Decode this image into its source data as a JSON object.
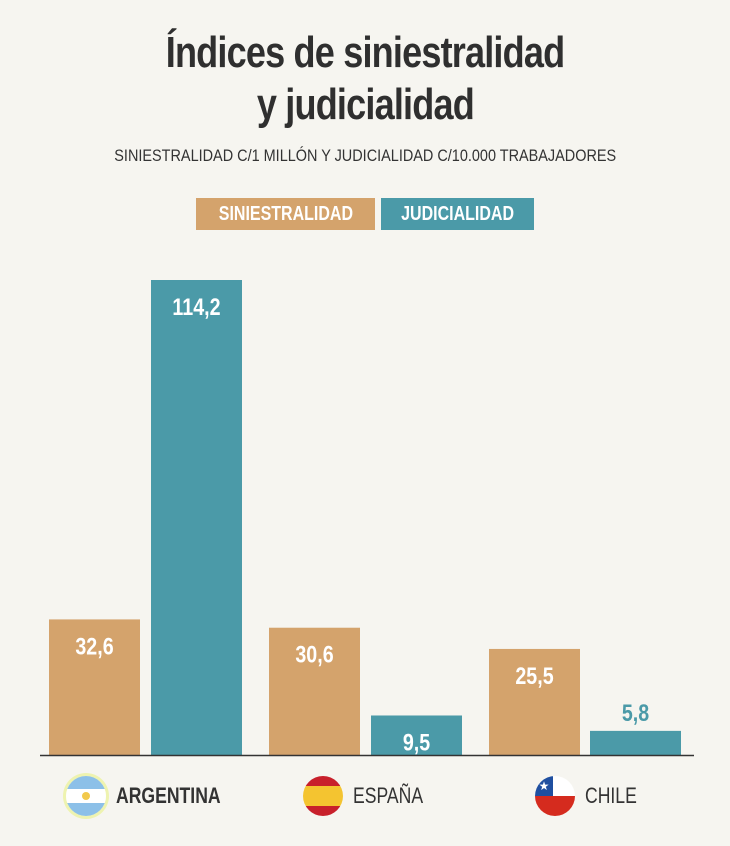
{
  "chart_data": {
    "type": "bar",
    "title_line1": "Índices de siniestralidad",
    "title_line2": "y judicialidad",
    "subtitle": "SINIESTRALIDAD C/1 MILLÓN Y JUDICIALIDAD C/10.000 TRABAJADORES",
    "categories": [
      "ARGENTINA",
      "ESPAÑA",
      "CHILE"
    ],
    "series": [
      {
        "name": "SINIESTRALIDAD",
        "color": "#d4a36c",
        "values": [
          32.6,
          30.6,
          25.5
        ],
        "labels": [
          "32,6",
          "30,6",
          "25,5"
        ]
      },
      {
        "name": "JUDICIALIDAD",
        "color": "#4b9aa8",
        "values": [
          114.2,
          9.5,
          5.8
        ],
        "labels": [
          "114,2",
          "9,5",
          "5,8"
        ]
      }
    ],
    "ylim": [
      0,
      114.2
    ],
    "grid": false,
    "legend_placement": "top-center",
    "flags": [
      "argentina-flag-icon",
      "spain-flag-icon",
      "chile-flag-icon"
    ]
  }
}
